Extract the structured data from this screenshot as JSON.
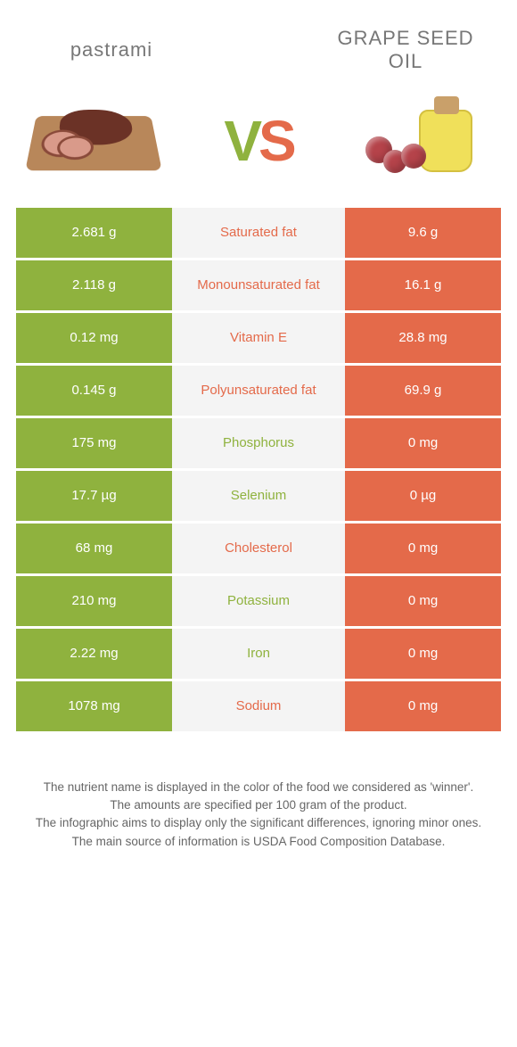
{
  "header": {
    "left_title": "pastrami",
    "right_title_line1": "GRAPE SEED",
    "right_title_line2": "OIL",
    "vs_v": "V",
    "vs_s": "S"
  },
  "colors": {
    "left": "#8fb23e",
    "right": "#e46a4a",
    "mid_bg": "#f4f4f4",
    "page_bg": "#ffffff"
  },
  "rows": [
    {
      "left": "2.681 g",
      "label": "Saturated fat",
      "right": "9.6 g",
      "winner": "right"
    },
    {
      "left": "2.118 g",
      "label": "Monounsaturated fat",
      "right": "16.1 g",
      "winner": "right"
    },
    {
      "left": "0.12 mg",
      "label": "Vitamin E",
      "right": "28.8 mg",
      "winner": "right"
    },
    {
      "left": "0.145 g",
      "label": "Polyunsaturated fat",
      "right": "69.9 g",
      "winner": "right"
    },
    {
      "left": "175 mg",
      "label": "Phosphorus",
      "right": "0 mg",
      "winner": "left"
    },
    {
      "left": "17.7 µg",
      "label": "Selenium",
      "right": "0 µg",
      "winner": "left"
    },
    {
      "left": "68 mg",
      "label": "Cholesterol",
      "right": "0 mg",
      "winner": "right"
    },
    {
      "left": "210 mg",
      "label": "Potassium",
      "right": "0 mg",
      "winner": "left"
    },
    {
      "left": "2.22 mg",
      "label": "Iron",
      "right": "0 mg",
      "winner": "left"
    },
    {
      "left": "1078 mg",
      "label": "Sodium",
      "right": "0 mg",
      "winner": "right"
    }
  ],
  "footer": {
    "line1": "The nutrient name is displayed in the color of the food we considered as 'winner'.",
    "line2": "The amounts are specified per 100 gram of the product.",
    "line3": "The infographic aims to display only the significant differences, ignoring minor ones.",
    "line4": "The main source of information is USDA Food Composition Database."
  }
}
